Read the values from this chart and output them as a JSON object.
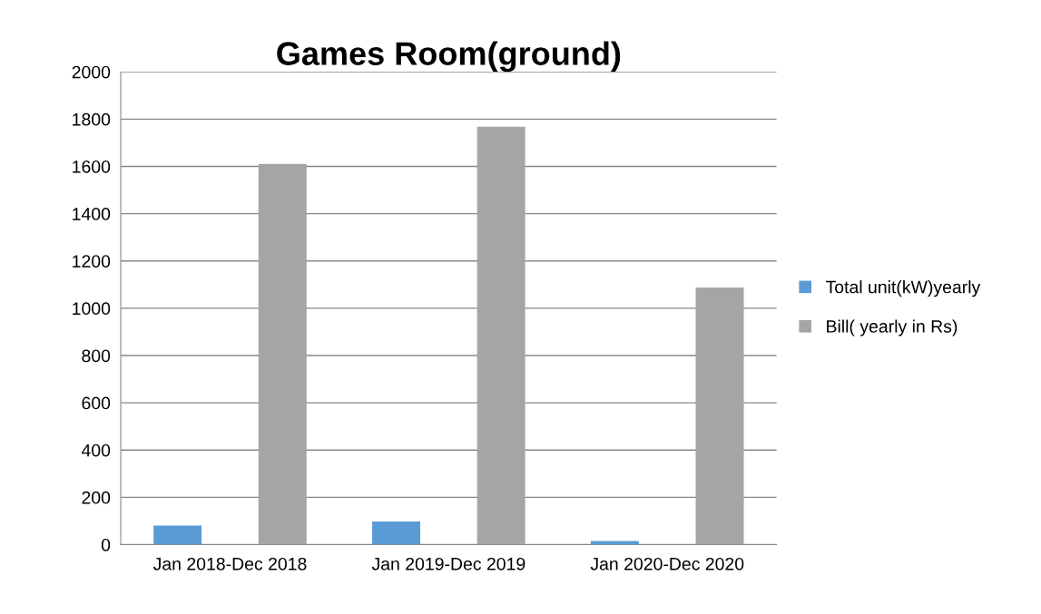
{
  "chart_data": {
    "type": "bar",
    "title": "Games Room(ground)",
    "categories": [
      "Jan 2018-Dec 2018",
      "Jan 2019-Dec 2019",
      "Jan 2020-Dec 2020"
    ],
    "series": [
      {
        "name": "Total unit(kW)yearly",
        "color": "#5b9bd5",
        "values": [
          81,
          98,
          15
        ]
      },
      {
        "name": "Bill( yearly in Rs)",
        "color": "#a5a5a5",
        "values": [
          1610,
          1768,
          1088
        ]
      }
    ],
    "ylim": [
      0,
      2000
    ],
    "yticks": [
      0,
      200,
      400,
      600,
      800,
      1000,
      1200,
      1400,
      1600,
      1800,
      2000
    ],
    "grid": "y",
    "legend": "right"
  }
}
